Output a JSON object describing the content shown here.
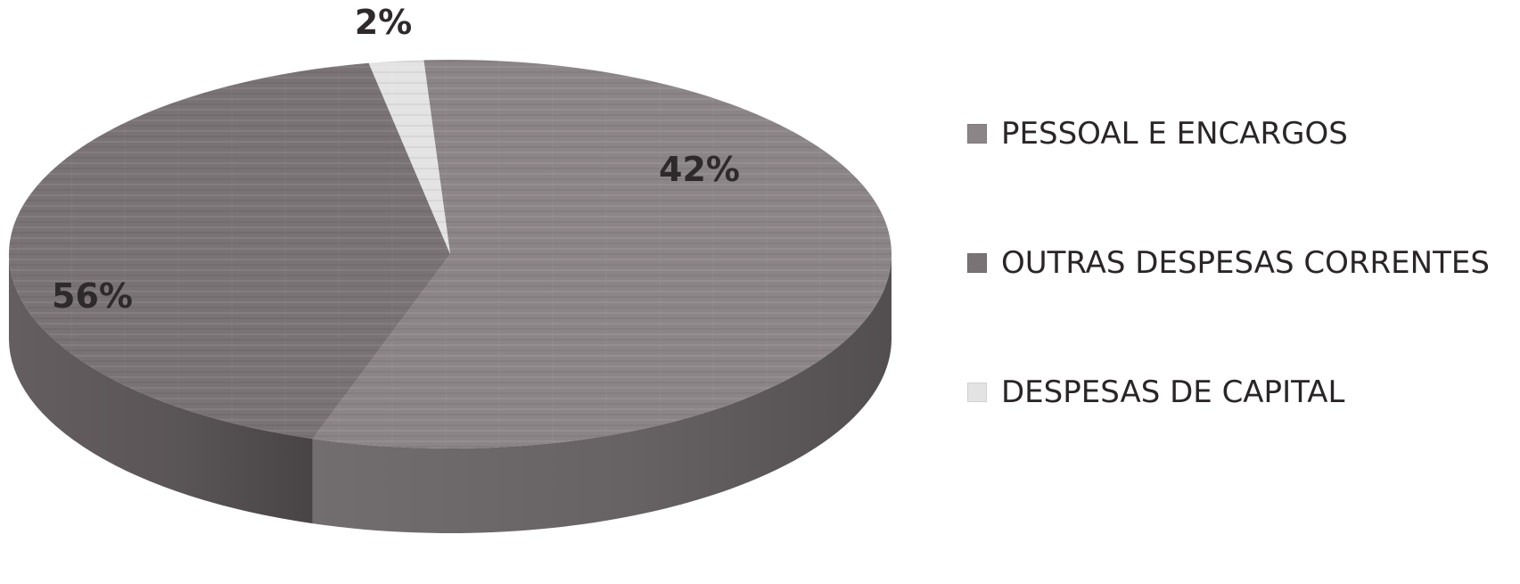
{
  "chart_data": {
    "type": "pie",
    "title": "",
    "categories": [
      "PESSOAL E ENCARGOS",
      "OUTRAS DESPESAS CORRENTES",
      "DESPESAS DE CAPITAL"
    ],
    "values": [
      56,
      42,
      2
    ],
    "labels": [
      "56%",
      "42%",
      "2%"
    ],
    "unit": "%",
    "colors": [
      "#8b8587",
      "#7a7375",
      "#e4e3e3"
    ],
    "legend_position": "right"
  }
}
